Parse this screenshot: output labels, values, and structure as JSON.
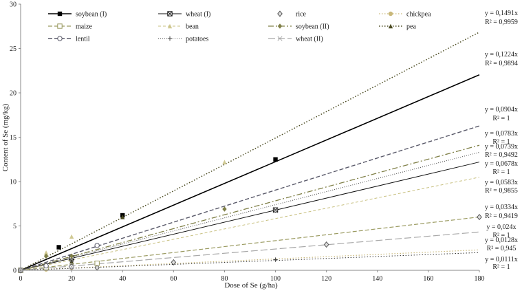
{
  "chart_data": {
    "type": "scatter",
    "title": "",
    "xlabel": "Dose of Se (g/ha)",
    "ylabel": "Content of Se (mg/kg)",
    "xlim": [
      0,
      180
    ],
    "ylim": [
      0,
      30
    ],
    "xticks": [
      0,
      20,
      40,
      60,
      80,
      100,
      120,
      140,
      160,
      180
    ],
    "yticks": [
      0,
      5,
      10,
      15,
      20,
      25,
      30
    ],
    "grid": false,
    "legend_position": "top",
    "series": [
      {
        "name": "soybean (I)",
        "color": "#000000",
        "line": "solid",
        "width": 1.6,
        "marker": "square-filled",
        "slope": 0.1224,
        "equation": "y = 0,1224x",
        "r2": "R² = 0,9894",
        "points": [
          [
            0,
            0
          ],
          [
            15,
            2.6
          ],
          [
            40,
            6.2
          ],
          [
            100,
            12.5
          ]
        ]
      },
      {
        "name": "wheat (I)",
        "color": "#111111",
        "line": "solid",
        "width": 1.0,
        "marker": "square-x",
        "slope": 0.0678,
        "equation": "y = 0,0678x",
        "r2": "R² = 1",
        "points": [
          [
            0,
            0
          ],
          [
            20,
            1.4
          ],
          [
            100,
            6.8
          ]
        ]
      },
      {
        "name": "rice",
        "color": "#555555",
        "line": "none",
        "width": 1.0,
        "marker": "diamond",
        "slope": 0,
        "equation": "",
        "r2": "",
        "points": [
          [
            0,
            0
          ],
          [
            30,
            0.3
          ],
          [
            60,
            0.9
          ],
          [
            120,
            2.9
          ],
          [
            180,
            6.0
          ]
        ]
      },
      {
        "name": "chickpea",
        "color": "#c9b87a",
        "line": "dotted",
        "width": 1.2,
        "marker": "circle-filled",
        "slope": 0.0128,
        "equation": "y = 0,0128x",
        "r2": "R² = 0,945",
        "points": [
          [
            0,
            0
          ],
          [
            10,
            0.1
          ],
          [
            20,
            0.3
          ]
        ]
      },
      {
        "name": "maize",
        "color": "#9a9a60",
        "line": "dashed",
        "width": 1.2,
        "marker": "square-open",
        "slope": 0.0334,
        "equation": "y = 0,0334x",
        "r2": "R² = 0,9419",
        "points": [
          [
            0,
            0
          ],
          [
            10,
            0.3
          ],
          [
            30,
            0.8
          ]
        ]
      },
      {
        "name": "bean",
        "color": "#c8c080",
        "line": "dashed-thin",
        "width": 1.0,
        "marker": "triangle",
        "slope": 0.0583,
        "equation": "y = 0,0583x",
        "r2": "R² = 0,9855",
        "points": [
          [
            0,
            0
          ],
          [
            10,
            2.0
          ],
          [
            20,
            3.8
          ],
          [
            80,
            12.2
          ]
        ]
      },
      {
        "name": "soybean (II)",
        "color": "#808048",
        "line": "dashdot",
        "width": 1.3,
        "marker": "diamond-filled",
        "slope": 0.0783,
        "equation": "y = 0,0783x",
        "r2": "R² = 1",
        "points": [
          [
            0,
            0
          ],
          [
            10,
            1.6
          ],
          [
            20,
            1.6
          ],
          [
            80,
            6.9
          ]
        ]
      },
      {
        "name": "pea",
        "color": "#4a4a20",
        "line": "dotted",
        "width": 1.5,
        "marker": "triangle-filled",
        "slope": 0.1491,
        "equation": "y = 0,1491x",
        "r2": "R² = 0,9959",
        "points": [
          [
            0,
            0
          ],
          [
            20,
            1.0
          ],
          [
            40,
            6.0
          ]
        ]
      },
      {
        "name": "lentil",
        "color": "#5a5a6a",
        "line": "dashed",
        "width": 1.4,
        "marker": "circle-open",
        "slope": 0.0904,
        "equation": "y = 0,0904x",
        "r2": "R² = 1",
        "points": [
          [
            0,
            0
          ],
          [
            10,
            0.5
          ],
          [
            20,
            0.4
          ],
          [
            30,
            2.8
          ]
        ]
      },
      {
        "name": "potatoes",
        "color": "#444444",
        "line": "dotted-fine",
        "width": 1.0,
        "marker": "plus",
        "slope": 0.0739,
        "equation": "y = 0,0739x",
        "r2": "R² = 0,9492",
        "points": [
          [
            0,
            0
          ],
          [
            20,
            1.0
          ],
          [
            100,
            1.2
          ]
        ]
      },
      {
        "name": "wheat (II)",
        "color": "#a8a8a8",
        "line": "longdash",
        "width": 1.2,
        "marker": "x",
        "slope": 0.024,
        "equation": "y = 0,024x",
        "r2": "R² = 1",
        "points": [
          [
            0,
            0
          ],
          [
            20,
            0.4
          ],
          [
            100,
            6.7
          ]
        ]
      },
      {
        "name": "",
        "color": "#333333",
        "line": "dotted",
        "width": 1.0,
        "marker": "none",
        "slope": 0.0111,
        "equation": "y = 0,0111x",
        "r2": "R² = 1",
        "points": []
      }
    ]
  }
}
